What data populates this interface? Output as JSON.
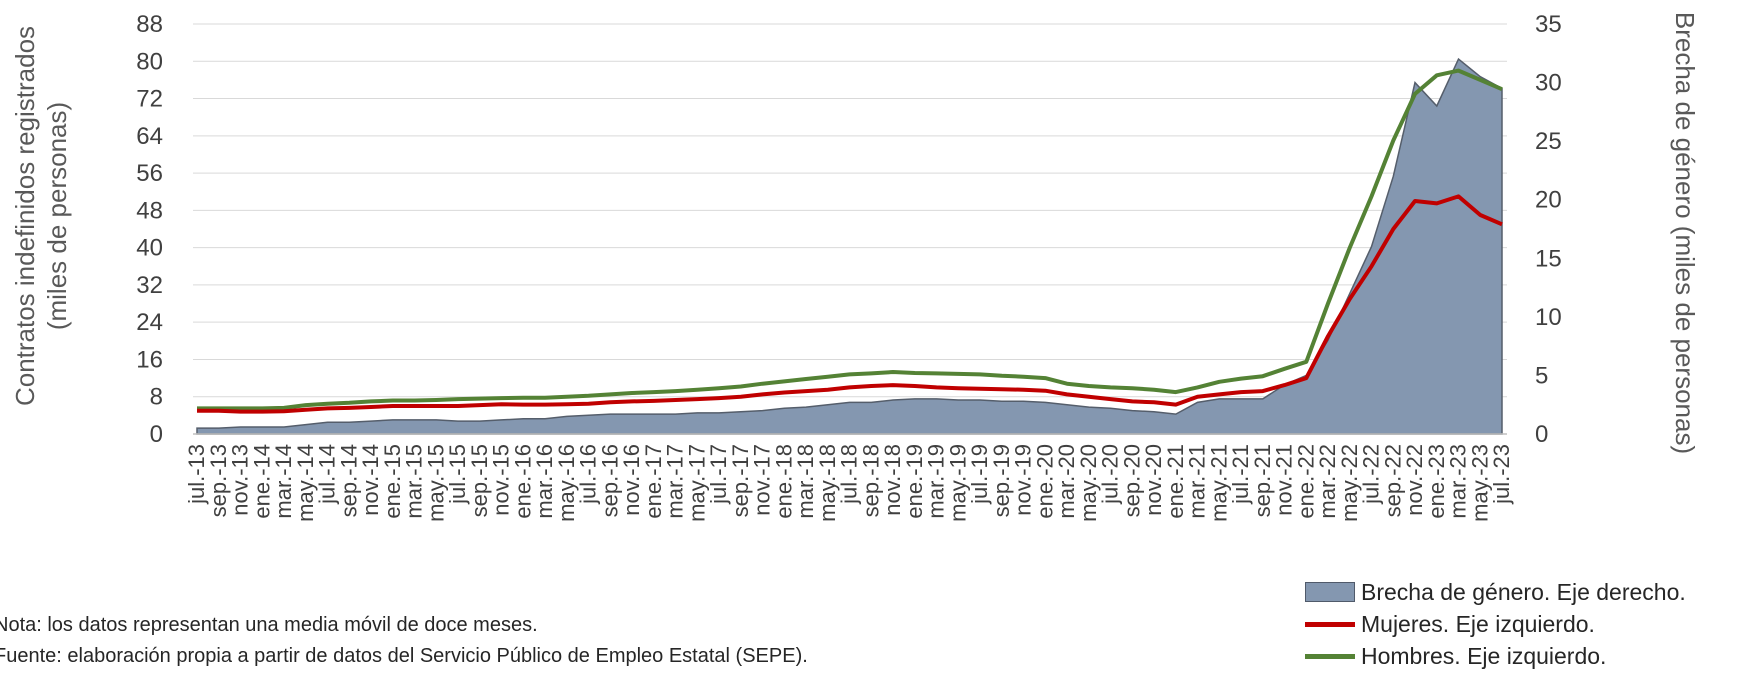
{
  "chart_data": {
    "type": "line",
    "ylabel_left_line1": "Contratos indefinidos registrados",
    "ylabel_left_line2": "(miles de personas)",
    "ylabel_right": "Brecha de género (miles de personas)",
    "y_left": {
      "min": 0,
      "max": 88,
      "ticks": [
        0,
        8,
        16,
        24,
        32,
        40,
        48,
        56,
        64,
        72,
        80,
        88
      ]
    },
    "y_right": {
      "min": 0,
      "max": 35,
      "ticks": [
        0,
        5,
        10,
        15,
        20,
        25,
        30,
        35
      ]
    },
    "grid": true,
    "legend_position": "bottom-right",
    "x_tick_labels": [
      "jul.-13",
      "sep.-13",
      "nov.-13",
      "ene.-14",
      "mar.-14",
      "may.-14",
      "jul.-14",
      "sep.-14",
      "nov.-14",
      "ene.-15",
      "mar.-15",
      "may.-15",
      "jul.-15",
      "sep.-15",
      "nov.-15",
      "ene.-16",
      "mar.-16",
      "may.-16",
      "jul.-16",
      "sep.-16",
      "nov.-16",
      "ene.-17",
      "mar.-17",
      "may.-17",
      "jul.-17",
      "sep.-17",
      "nov.-17",
      "ene.-18",
      "mar.-18",
      "may.-18",
      "jul.-18",
      "sep.-18",
      "nov.-18",
      "ene.-19",
      "mar.-19",
      "may.-19",
      "jul.-19",
      "sep.-19",
      "nov.-19",
      "ene.-20",
      "mar.-20",
      "may.-20",
      "jul.-20",
      "sep.-20",
      "nov.-20",
      "ene.-21",
      "mar.-21",
      "may.-21",
      "jul.-21",
      "sep.-21",
      "nov.-21",
      "ene.-22",
      "mar.-22",
      "may.-22",
      "jul.-22",
      "sep.-22",
      "nov.-22",
      "ene.-23",
      "mar.-23",
      "may.-23",
      "jul.-23"
    ],
    "series": [
      {
        "name": "Brecha de género. Eje derecho.",
        "kind": "area",
        "axis": "right",
        "color": "#8497B0",
        "values": [
          0.5,
          0.5,
          0.6,
          0.6,
          0.6,
          0.8,
          1.0,
          1.0,
          1.1,
          1.2,
          1.2,
          1.2,
          1.1,
          1.1,
          1.2,
          1.3,
          1.3,
          1.5,
          1.6,
          1.7,
          1.7,
          1.7,
          1.7,
          1.8,
          1.8,
          1.9,
          2.0,
          2.2,
          2.3,
          2.5,
          2.7,
          2.7,
          2.9,
          3.0,
          3.0,
          2.9,
          2.9,
          2.8,
          2.8,
          2.7,
          2.5,
          2.3,
          2.2,
          2.0,
          1.9,
          1.7,
          2.7,
          3.0,
          3.0,
          3.0,
          4.2,
          5.0,
          8.0,
          12.0,
          16.0,
          22.0,
          30.0,
          28.0,
          32.0,
          30.5,
          29.5
        ]
      },
      {
        "name": "Mujeres. Eje izquierdo.",
        "kind": "line",
        "axis": "left",
        "color": "#C00000",
        "values": [
          5.0,
          5.0,
          4.8,
          4.8,
          4.9,
          5.2,
          5.5,
          5.6,
          5.8,
          6.0,
          6.0,
          6.0,
          6.0,
          6.2,
          6.4,
          6.3,
          6.3,
          6.4,
          6.5,
          6.8,
          7.0,
          7.1,
          7.3,
          7.5,
          7.7,
          8.0,
          8.5,
          8.9,
          9.2,
          9.5,
          10.0,
          10.3,
          10.5,
          10.3,
          10.0,
          9.8,
          9.7,
          9.6,
          9.5,
          9.3,
          8.5,
          8.0,
          7.5,
          7.0,
          6.8,
          6.3,
          8.0,
          8.5,
          9.0,
          9.2,
          10.5,
          12.0,
          21.0,
          29.0,
          36.0,
          44.0,
          50.0,
          49.5,
          51.0,
          47.0,
          45.0
        ]
      },
      {
        "name": "Hombres. Eje izquierdo.",
        "kind": "line",
        "axis": "left",
        "color": "#548235",
        "values": [
          5.5,
          5.5,
          5.5,
          5.5,
          5.6,
          6.2,
          6.5,
          6.7,
          7.0,
          7.2,
          7.2,
          7.3,
          7.5,
          7.6,
          7.7,
          7.8,
          7.8,
          8.0,
          8.2,
          8.5,
          8.8,
          9.0,
          9.2,
          9.5,
          9.8,
          10.2,
          10.8,
          11.3,
          11.8,
          12.3,
          12.8,
          13.0,
          13.3,
          13.1,
          13.0,
          12.9,
          12.8,
          12.5,
          12.3,
          12.0,
          10.8,
          10.3,
          10.0,
          9.8,
          9.5,
          9.0,
          10.0,
          11.2,
          11.9,
          12.4,
          14.0,
          15.5,
          28.0,
          40.0,
          51.0,
          63.0,
          73.0,
          77.0,
          78.0,
          76.0,
          74.0
        ]
      }
    ]
  },
  "notes": {
    "line1": "Nota: los datos representan una media móvil de doce meses.",
    "line2": "Fuente: elaboración propia a partir de datos del Servicio Público de Empleo Estatal (SEPE)."
  }
}
